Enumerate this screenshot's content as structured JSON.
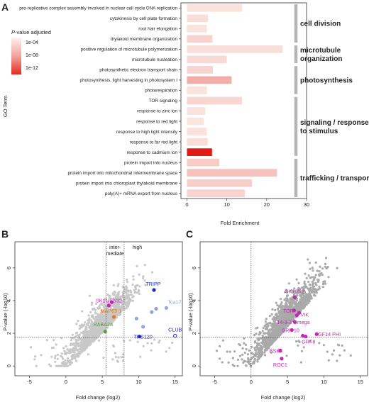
{
  "panels": {
    "a": "A",
    "b": "B",
    "c": "C"
  },
  "legend": {
    "title_italic": "P",
    "title_rest": "-value adjusted",
    "labels": [
      "1e-04",
      "1e-08",
      "1e-12"
    ],
    "gradient": [
      "#fdf1ef",
      "#f09a92",
      "#e32a1f"
    ]
  },
  "colors": {
    "bar_low": "#fbece8",
    "bar_high": "#e01b14",
    "bracket": "#b5b5b5",
    "scatter_gray": "#c8c8c8",
    "scatter_gray_c": "#a9a9a9",
    "magenta": "#c425b4",
    "orange": "#e07a22",
    "green": "#4ea03a",
    "navy": "#1b2bc4",
    "lightblue": "#8fa8dc"
  },
  "chart_data": [
    {
      "type": "bar",
      "orientation": "horizontal",
      "xlabel": "Fold Enrichment",
      "ylabel": "GO Term",
      "xlim": [
        -1.5,
        30
      ],
      "xticks": [
        0,
        10,
        20,
        30
      ],
      "categories": [
        "pre-replicative complex assembly involved in nuclear cell cycle DNA replication",
        "cytokinesis by cell plate formation",
        "root hair elongation",
        "thylakoid membrane organization",
        "positive regulation of microtubule polymerization",
        "microtubule nucleation",
        "photosynthetic electron transport chain",
        "photosynthesis, light harvesting in photosystem I",
        "photorespiration",
        "TOR signaling",
        "response to zinc ion",
        "response to red light",
        "response to high light intensity",
        "response to far red light",
        "response to cadmium ion",
        "protein import into nucleus",
        "protein import into mitochondrial intermembrane space",
        "protein import into chloroplast thylakoid membrane",
        "poly(A)+ mRNA export from nucleus"
      ],
      "values": [
        13.8,
        5.3,
        5.0,
        6.4,
        24.0,
        10.0,
        6.5,
        11.2,
        5.0,
        13.8,
        4.6,
        4.2,
        5.0,
        5.2,
        6.3,
        8.1,
        22.6,
        16.3,
        14.5
      ],
      "intensity": [
        0.05,
        0.07,
        0.05,
        0.12,
        0.06,
        0.09,
        0.12,
        0.3,
        0.05,
        0.1,
        0.05,
        0.04,
        0.05,
        0.07,
        1.0,
        0.16,
        0.2,
        0.14,
        0.12
      ],
      "groups": [
        {
          "label": [
            "cell division"
          ],
          "from": 0,
          "to": 3
        },
        {
          "label": [
            "microtubule",
            "organization"
          ],
          "from": 4,
          "to": 5
        },
        {
          "label": [
            "photosynthesis"
          ],
          "from": 6,
          "to": 8
        },
        {
          "label": [
            "signaling / response",
            "to stimulus"
          ],
          "from": 9,
          "to": 14
        },
        {
          "label": [
            "trafficking / transport"
          ],
          "from": 15,
          "to": 18
        }
      ]
    },
    {
      "type": "scatter",
      "xlabel": "Fold change (log2)",
      "ylabel": "P-value (-log10)",
      "xlim": [
        -7,
        16
      ],
      "ylim": [
        -0.6,
        7.6
      ],
      "xticks": [
        -5,
        0,
        5,
        10,
        15
      ],
      "yticks": [
        0,
        2,
        4,
        6
      ],
      "vlines": [
        5.5,
        8
      ],
      "hline": 1.75,
      "zones": [
        [
          "inter-",
          "mediate"
        ],
        [
          "high"
        ]
      ],
      "highlight": [
        {
          "name": "TRIPP",
          "x": 12.1,
          "y": 4.65,
          "color": "navy"
        },
        {
          "name": "SK11/12/32",
          "x": 6.3,
          "y": 3.9,
          "color": "magenta"
        },
        {
          "name": "Tca17",
          "x": 13.8,
          "y": 3.55,
          "color": "lightblue"
        },
        {
          "name": "MAP65-1",
          "x": 6.6,
          "y": 3.0,
          "color": "orange"
        },
        {
          "name": "RABA2a",
          "x": 5.4,
          "y": 2.1,
          "color": "green"
        },
        {
          "name": "TRS120",
          "x": 10.1,
          "y": 1.8,
          "color": "navy"
        },
        {
          "name": "CLUB",
          "x": 15.0,
          "y": 1.85,
          "color": "navy"
        }
      ],
      "extra_points": [
        {
          "x": 5.9,
          "y": 3.7,
          "color": "magenta"
        },
        {
          "x": 11.8,
          "y": 3.3,
          "color": "lightblue"
        },
        {
          "x": 12.4,
          "y": 3.5,
          "color": "lightblue"
        },
        {
          "x": 9.7,
          "y": 2.9,
          "color": "lightblue"
        },
        {
          "x": 10.6,
          "y": 2.4,
          "color": "lightblue"
        }
      ]
    },
    {
      "type": "scatter",
      "xlabel": "Fold change (log2)",
      "ylabel": "P-value (-log10)",
      "xlim": [
        -7,
        16
      ],
      "ylim": [
        -0.6,
        7.6
      ],
      "xticks": [
        -5,
        0,
        5,
        10,
        15
      ],
      "yticks": [
        0,
        2,
        4,
        6
      ],
      "vline": 0,
      "hline": 1.75,
      "highlight": [
        {
          "name": "SK11/12",
          "x": 6.0,
          "y": 4.2,
          "color": "magenta"
        },
        {
          "name": "TOR",
          "x": 5.9,
          "y": 3.4,
          "color": "magenta"
        },
        {
          "name": "VIK",
          "x": 6.3,
          "y": 3.1,
          "color": "magenta"
        },
        {
          "name": "14-3-3 Omega",
          "x": 6.0,
          "y": 2.7,
          "color": "magenta"
        },
        {
          "name": "GRF 10",
          "x": 5.6,
          "y": 2.2,
          "color": "magenta"
        },
        {
          "name": "GRF8",
          "x": 7.5,
          "y": 1.8,
          "color": "magenta"
        },
        {
          "name": "GF14 PHI",
          "x": 9.0,
          "y": 1.95,
          "color": "magenta"
        },
        {
          "name": "BSK8",
          "x": 4.0,
          "y": 0.95,
          "color": "magenta"
        },
        {
          "name": "ROC1",
          "x": 4.2,
          "y": 0.45,
          "color": "magenta"
        }
      ],
      "extra_points": [
        {
          "x": 6.6,
          "y": 3.25,
          "color": "magenta"
        },
        {
          "x": 7.1,
          "y": 1.85,
          "color": "magenta"
        }
      ]
    }
  ]
}
